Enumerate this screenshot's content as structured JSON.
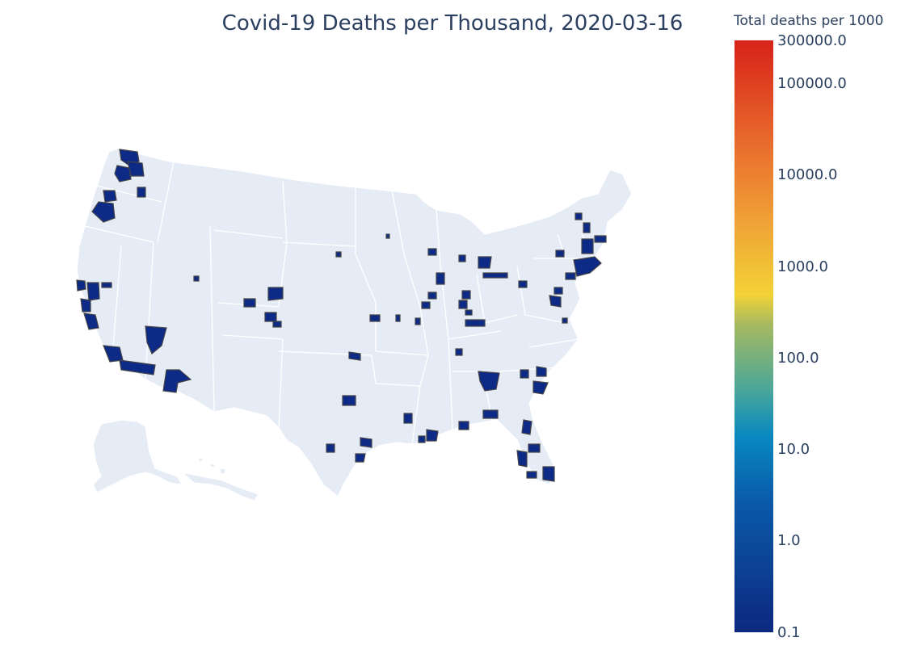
{
  "title": "Covid-19 Deaths per Thousand, 2020-03-16",
  "colorbar": {
    "title": "Total deaths per 1000",
    "ticks": [
      "300000.0",
      "100000.0",
      "10000.0",
      "1000.0",
      "100.0",
      "10.0",
      "1.0",
      "0.1"
    ],
    "colorscale": [
      "#0d2880",
      "#0a5aa8",
      "#0788c0",
      "#4aa79a",
      "#a6b960",
      "#f2d235",
      "#f0a336",
      "#e86a2c",
      "#dd3b1f",
      "#d7231b"
    ],
    "scale": "log"
  },
  "map": {
    "land_color": "#e5ecf6",
    "border_color": "#ffffff",
    "county_fill": "#0d2a86",
    "county_outline": "#444444"
  }
}
